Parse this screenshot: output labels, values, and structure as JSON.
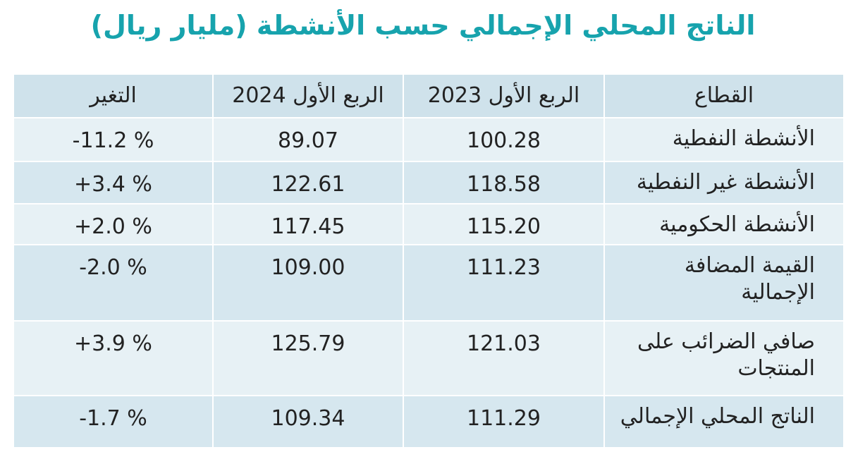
{
  "header": {
    "title": "الناتج المحلي الإجمالي حسب الأنشطة (مليار ريال)"
  },
  "table": {
    "columns": [
      "القطاع",
      "الربع الأول 2023",
      "الربع الأول 2024",
      "التغير"
    ],
    "rows": [
      [
        "الأنشطة النفطية",
        "100.28",
        "89.07",
        "-11.2 %"
      ],
      [
        "الأنشطة غير النفطية",
        "118.58",
        "122.61",
        "+3.4 %"
      ],
      [
        "الأنشطة الحكومية",
        "115.20",
        "117.45",
        "+2.0 %"
      ],
      [
        "القيمة المضافة الإجمالية",
        "111.23",
        "109.00",
        "-2.0 %"
      ],
      [
        "صافي الضرائب على المنتجات",
        "121.03",
        "125.79",
        "+3.9 %"
      ],
      [
        "الناتج المحلي الإجمالي",
        "111.29",
        "109.34",
        "-1.7 %"
      ]
    ]
  }
}
